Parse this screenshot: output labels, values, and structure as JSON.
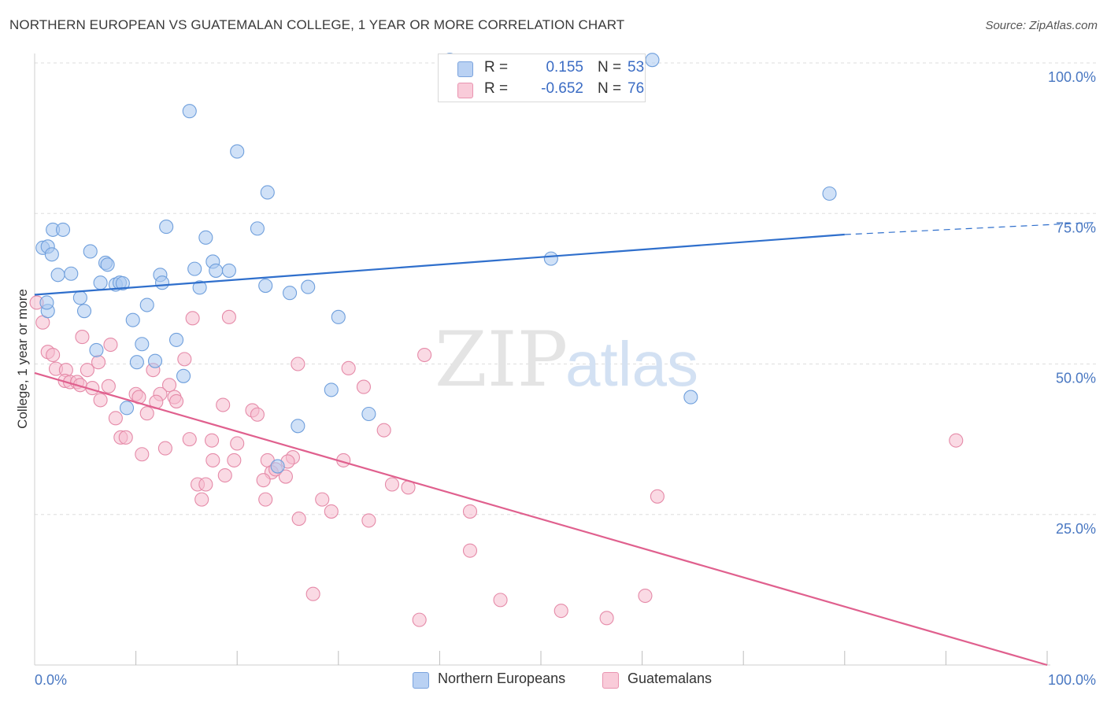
{
  "title": "NORTHERN EUROPEAN VS GUATEMALAN COLLEGE, 1 YEAR OR MORE CORRELATION CHART",
  "source": "Source: ZipAtlas.com",
  "watermark": {
    "zip": "ZIP",
    "atlas": "atlas"
  },
  "legend": {
    "row1": {
      "r_label": "R =",
      "r_value": "0.155",
      "n_label": "N =",
      "n_value": "53"
    },
    "row2": {
      "r_label": "R =",
      "r_value": "-0.652",
      "n_label": "N =",
      "n_value": "76"
    }
  },
  "bottom_legend": {
    "series1": "Northern Europeans",
    "series2": "Guatemalans"
  },
  "colors": {
    "blue_fill": "#aac8f0",
    "blue_stroke": "#6f9fdc",
    "blue_line": "#2f6fcc",
    "pink_fill": "#f6bccd",
    "pink_stroke": "#e58aa8",
    "pink_line": "#e0608e",
    "tick_text": "#4a78c2",
    "grid": "#dddddd"
  },
  "chart_data": {
    "type": "scatter",
    "title": "NORTHERN EUROPEAN VS GUATEMALAN COLLEGE, 1 YEAR OR MORE CORRELATION CHART",
    "xlabel": "",
    "ylabel": "College, 1 year or more",
    "xlim": [
      0,
      100
    ],
    "ylim": [
      0,
      100
    ],
    "x_tick_labels": [
      "0.0%",
      "100.0%"
    ],
    "y_tick_labels": [
      "25.0%",
      "50.0%",
      "75.0%",
      "100.0%"
    ],
    "y_ticks": [
      25,
      50,
      75,
      100
    ],
    "grid": true,
    "legend_position": "top-center",
    "series": [
      {
        "name": "Northern Europeans",
        "r": 0.155,
        "n": 53,
        "trend": {
          "x": [
            0,
            80
          ],
          "y": [
            61.5,
            71.5
          ],
          "dashed_to": [
            100,
            73.5
          ]
        },
        "points": [
          [
            41.0,
            100.5
          ],
          [
            61.0,
            100.5
          ],
          [
            15.3,
            92.0
          ],
          [
            20.0,
            85.3
          ],
          [
            23.0,
            78.5
          ],
          [
            78.5,
            78.3
          ],
          [
            1.8,
            72.3
          ],
          [
            2.8,
            72.3
          ],
          [
            13.0,
            72.8
          ],
          [
            22.0,
            72.5
          ],
          [
            16.9,
            71.0
          ],
          [
            0.8,
            69.3
          ],
          [
            1.3,
            69.5
          ],
          [
            1.7,
            68.2
          ],
          [
            5.5,
            68.7
          ],
          [
            17.6,
            67.0
          ],
          [
            7.0,
            66.8
          ],
          [
            7.2,
            66.5
          ],
          [
            51.0,
            67.5
          ],
          [
            15.8,
            65.8
          ],
          [
            17.9,
            65.5
          ],
          [
            19.2,
            65.5
          ],
          [
            2.3,
            64.8
          ],
          [
            3.6,
            65.0
          ],
          [
            12.4,
            64.8
          ],
          [
            12.6,
            63.5
          ],
          [
            6.5,
            63.5
          ],
          [
            8.0,
            63.2
          ],
          [
            8.4,
            63.5
          ],
          [
            8.7,
            63.4
          ],
          [
            16.3,
            62.7
          ],
          [
            22.8,
            63.0
          ],
          [
            25.2,
            61.8
          ],
          [
            27.0,
            62.8
          ],
          [
            4.5,
            61.0
          ],
          [
            11.1,
            59.8
          ],
          [
            4.9,
            58.8
          ],
          [
            30.0,
            57.8
          ],
          [
            9.7,
            57.3
          ],
          [
            1.3,
            58.8
          ],
          [
            14.0,
            54.0
          ],
          [
            10.6,
            53.3
          ],
          [
            6.1,
            52.3
          ],
          [
            10.1,
            50.3
          ],
          [
            11.9,
            50.5
          ],
          [
            14.7,
            48.0
          ],
          [
            29.3,
            45.7
          ],
          [
            64.8,
            44.5
          ],
          [
            9.1,
            42.7
          ],
          [
            33.0,
            41.7
          ],
          [
            26.0,
            39.7
          ],
          [
            24.0,
            33.0
          ],
          [
            1.2,
            60.2
          ]
        ]
      },
      {
        "name": "Guatemalans",
        "r": -0.652,
        "n": 76,
        "trend": {
          "x": [
            0,
            100
          ],
          "y": [
            48.5,
            0
          ]
        },
        "points": [
          [
            0.2,
            60.2
          ],
          [
            0.8,
            56.9
          ],
          [
            15.6,
            57.6
          ],
          [
            19.2,
            57.8
          ],
          [
            4.7,
            54.5
          ],
          [
            7.5,
            53.2
          ],
          [
            1.3,
            52.0
          ],
          [
            1.8,
            51.5
          ],
          [
            38.5,
            51.5
          ],
          [
            6.3,
            50.3
          ],
          [
            26.0,
            50.0
          ],
          [
            31.0,
            49.3
          ],
          [
            2.1,
            49.2
          ],
          [
            3.1,
            49.0
          ],
          [
            5.2,
            49.0
          ],
          [
            11.7,
            49.0
          ],
          [
            14.8,
            50.8
          ],
          [
            3.0,
            47.2
          ],
          [
            3.5,
            47.0
          ],
          [
            4.2,
            47.0
          ],
          [
            4.5,
            46.5
          ],
          [
            5.7,
            46.0
          ],
          [
            7.3,
            46.3
          ],
          [
            13.3,
            46.5
          ],
          [
            32.5,
            46.2
          ],
          [
            10.0,
            45.0
          ],
          [
            10.3,
            44.5
          ],
          [
            12.4,
            45.0
          ],
          [
            13.8,
            44.5
          ],
          [
            6.5,
            44.0
          ],
          [
            12.0,
            43.7
          ],
          [
            14.0,
            43.8
          ],
          [
            18.6,
            43.2
          ],
          [
            21.5,
            42.3
          ],
          [
            22.0,
            41.6
          ],
          [
            11.1,
            41.8
          ],
          [
            8.0,
            41.0
          ],
          [
            34.5,
            39.0
          ],
          [
            8.5,
            37.8
          ],
          [
            9.0,
            37.8
          ],
          [
            15.3,
            37.5
          ],
          [
            17.5,
            37.3
          ],
          [
            20.0,
            36.8
          ],
          [
            12.9,
            36.0
          ],
          [
            10.6,
            35.0
          ],
          [
            25.5,
            34.5
          ],
          [
            17.6,
            34.0
          ],
          [
            19.7,
            34.0
          ],
          [
            23.0,
            34.0
          ],
          [
            25.0,
            33.8
          ],
          [
            30.5,
            34.0
          ],
          [
            91.0,
            37.3
          ],
          [
            23.4,
            32.0
          ],
          [
            18.8,
            31.5
          ],
          [
            23.8,
            32.5
          ],
          [
            24.8,
            31.3
          ],
          [
            22.6,
            30.7
          ],
          [
            16.1,
            30.0
          ],
          [
            16.9,
            30.0
          ],
          [
            35.3,
            30.0
          ],
          [
            36.9,
            29.5
          ],
          [
            61.5,
            28.0
          ],
          [
            16.5,
            27.5
          ],
          [
            22.8,
            27.5
          ],
          [
            28.4,
            27.5
          ],
          [
            29.3,
            25.5
          ],
          [
            43.0,
            25.5
          ],
          [
            26.1,
            24.3
          ],
          [
            33.0,
            24.0
          ],
          [
            43.0,
            19.0
          ],
          [
            27.5,
            11.8
          ],
          [
            46.0,
            10.8
          ],
          [
            52.0,
            9.0
          ],
          [
            60.3,
            11.5
          ],
          [
            38.0,
            7.5
          ],
          [
            56.5,
            7.8
          ]
        ]
      }
    ]
  }
}
